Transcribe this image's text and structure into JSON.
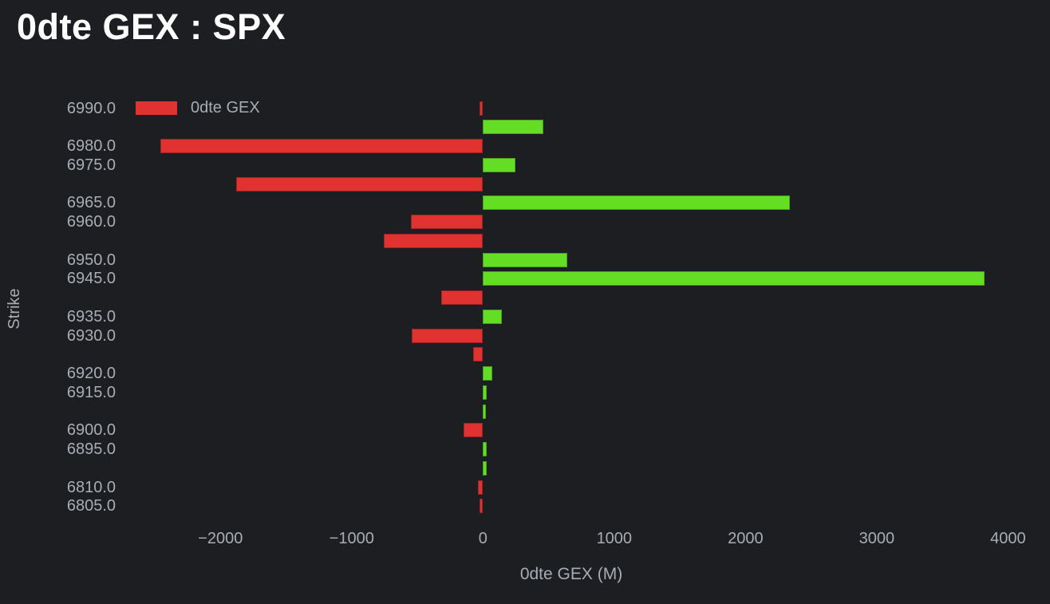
{
  "title": "0dte GEX : SPX",
  "legend": {
    "label": "0dte GEX",
    "swatch_color": "#e03331"
  },
  "colors": {
    "background": "#1c1e22",
    "title_text": "#ffffff",
    "axis_text": "#a8adb4",
    "positive": "#64de24",
    "positive_border": "#4b9f1d",
    "negative": "#e03331",
    "negative_border": "#9e2423"
  },
  "chart_data": {
    "type": "bar",
    "orientation": "horizontal",
    "title": "0dte GEX : SPX",
    "xlabel": "0dte GEX (M)",
    "ylabel": "Strike",
    "xlim": [
      -2670,
      4320
    ],
    "x_ticks": [
      -2000,
      -1000,
      0,
      1000,
      2000,
      3000,
      4000
    ],
    "grid": false,
    "legend_position": "top-left-inside",
    "series_name": "0dte GEX",
    "rows": [
      {
        "strike": "6990.0",
        "gex_m": -25
      },
      {
        "strike": "",
        "gex_m": 460
      },
      {
        "strike": "6980.0",
        "gex_m": -2460
      },
      {
        "strike": "6975.0",
        "gex_m": 250
      },
      {
        "strike": "",
        "gex_m": -1880
      },
      {
        "strike": "6965.0",
        "gex_m": 2340
      },
      {
        "strike": "6960.0",
        "gex_m": -550
      },
      {
        "strike": "",
        "gex_m": -755
      },
      {
        "strike": "6950.0",
        "gex_m": 640
      },
      {
        "strike": "6945.0",
        "gex_m": 3820
      },
      {
        "strike": "",
        "gex_m": -320
      },
      {
        "strike": "6935.0",
        "gex_m": 145
      },
      {
        "strike": "6930.0",
        "gex_m": -545
      },
      {
        "strike": "",
        "gex_m": -75
      },
      {
        "strike": "6920.0",
        "gex_m": 70
      },
      {
        "strike": "6915.0",
        "gex_m": 30
      },
      {
        "strike": "",
        "gex_m": 25
      },
      {
        "strike": "6900.0",
        "gex_m": -145
      },
      {
        "strike": "6895.0",
        "gex_m": 30
      },
      {
        "strike": "",
        "gex_m": 30
      },
      {
        "strike": "6810.0",
        "gex_m": -40
      },
      {
        "strike": "6805.0",
        "gex_m": -25
      }
    ]
  }
}
